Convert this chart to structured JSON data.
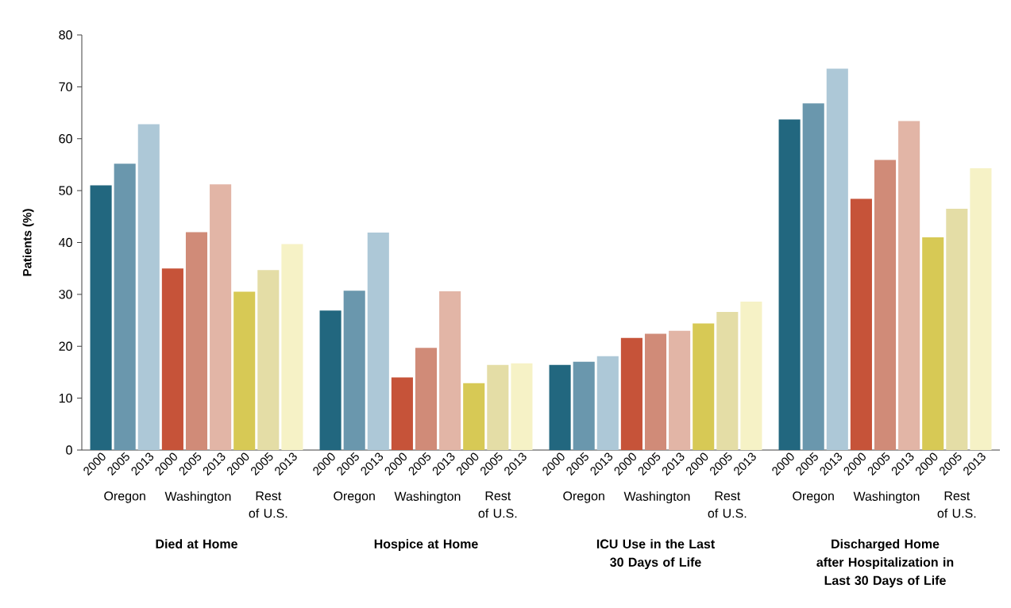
{
  "chart_data": [
    {
      "type": "bar",
      "xlabel": "Died at Home",
      "ylabel": "Patients (%)",
      "categories": [
        "2000",
        "2005",
        "2013",
        "2000",
        "2005",
        "2013",
        "2000",
        "2005",
        "2013"
      ],
      "values": [
        51.0,
        55.2,
        62.8,
        35.0,
        42.0,
        51.2,
        30.5,
        34.7,
        39.7
      ],
      "colors": [
        "#22677f",
        "#6a97ad",
        "#adc8d7",
        "#c65339",
        "#d08b78",
        "#e2b5a6",
        "#d7c955",
        "#e4dda6",
        "#f6f2c6"
      ],
      "annotations": [
        "Oregon",
        "Washington",
        "Rest of U.S."
      ],
      "ylim": [
        0,
        80
      ],
      "yticks": [
        0,
        10,
        20,
        30,
        40,
        50,
        60,
        70,
        80
      ]
    },
    {
      "type": "bar",
      "xlabel": "Hospice at Home",
      "categories": [
        "2000",
        "2005",
        "2013",
        "2000",
        "2005",
        "2013",
        "2000",
        "2005",
        "2013"
      ],
      "values": [
        26.9,
        30.7,
        41.9,
        14.0,
        19.7,
        30.6,
        12.9,
        16.4,
        16.7
      ],
      "colors": [
        "#22677f",
        "#6a97ad",
        "#adc8d7",
        "#c65339",
        "#d08b78",
        "#e2b5a6",
        "#d7c955",
        "#e4dda6",
        "#f6f2c6"
      ],
      "annotations": [
        "Oregon",
        "Washington",
        "Rest of U.S."
      ],
      "ylim": [
        0,
        80
      ],
      "tick_labels": "x"
    },
    {
      "type": "bar",
      "xlabel": "ICU Use in the Last 30 Days of Life",
      "categories": [
        "2000",
        "2005",
        "2013",
        "2000",
        "2005",
        "2013",
        "2000",
        "2005",
        "2013"
      ],
      "values": [
        16.4,
        17.0,
        18.1,
        21.6,
        22.4,
        23.0,
        24.4,
        26.6,
        28.6
      ],
      "colors": [
        "#22677f",
        "#6a97ad",
        "#adc8d7",
        "#c65339",
        "#d08b78",
        "#e2b5a6",
        "#d7c955",
        "#e4dda6",
        "#f6f2c6"
      ],
      "annotations": [
        "Oregon",
        "Washington",
        "Rest of U.S."
      ],
      "ylim": [
        0,
        80
      ],
      "tick_labels": "x"
    },
    {
      "type": "bar",
      "xlabel": "Discharged Home after Hospitalization in Last 30 Days of Life",
      "categories": [
        "2000",
        "2005",
        "2013",
        "2000",
        "2005",
        "2013",
        "2000",
        "2005",
        "2013"
      ],
      "values": [
        63.7,
        66.8,
        73.5,
        48.4,
        55.9,
        63.4,
        41.0,
        46.5,
        54.3
      ],
      "colors": [
        "#22677f",
        "#6a97ad",
        "#adc8d7",
        "#c65339",
        "#d08b78",
        "#e2b5a6",
        "#d7c955",
        "#e4dda6",
        "#f6f2c6"
      ],
      "annotations": [
        "Oregon",
        "Washington",
        "Rest of U.S."
      ],
      "ylim": [
        0,
        80
      ],
      "tick_labels": "x"
    }
  ]
}
